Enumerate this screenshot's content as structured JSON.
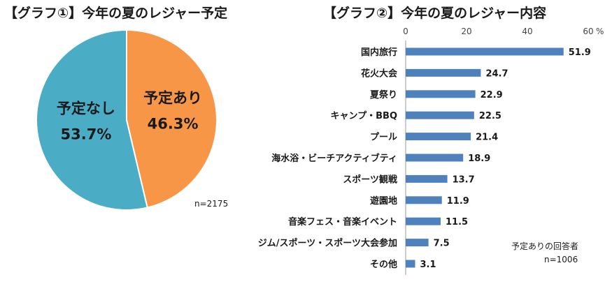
{
  "chart_data": [
    {
      "type": "pie",
      "title": "【グラフ①】今年の夏のレジャー予定",
      "slices": [
        {
          "label": "予定あり",
          "value": 46.3,
          "display": "46.3%",
          "color": "#F79646"
        },
        {
          "label": "予定なし",
          "value": 53.7,
          "display": "53.7%",
          "color": "#4BACC6"
        }
      ],
      "note": "n=2175"
    },
    {
      "type": "bar",
      "orientation": "horizontal",
      "title": "【グラフ②】今年の夏のレジャー内容",
      "categories": [
        "国内旅行",
        "花火大会",
        "夏祭り",
        "キャンプ・BBQ",
        "プール",
        "海水浴・ビーチアクティブティ",
        "スポーツ観戦",
        "遊園地",
        "音楽フェス・音楽イベント",
        "ジム/スポーツ・スポーツ大会参加",
        "その他"
      ],
      "values": [
        51.9,
        24.7,
        22.9,
        22.5,
        21.4,
        18.9,
        13.7,
        11.9,
        11.5,
        7.5,
        3.1
      ],
      "value_labels": [
        "51.9",
        "24.7",
        "22.9",
        "22.5",
        "21.4",
        "18.9",
        "13.7",
        "11.9",
        "11.5",
        "7.5",
        "3.1"
      ],
      "xlim": [
        0,
        60
      ],
      "x_ticks": [
        "0",
        "20",
        "40",
        "60"
      ],
      "unit": "%",
      "bar_color": "#4F81BD",
      "grid": false,
      "note": [
        "予定ありの回答者",
        "n=1006"
      ]
    }
  ]
}
